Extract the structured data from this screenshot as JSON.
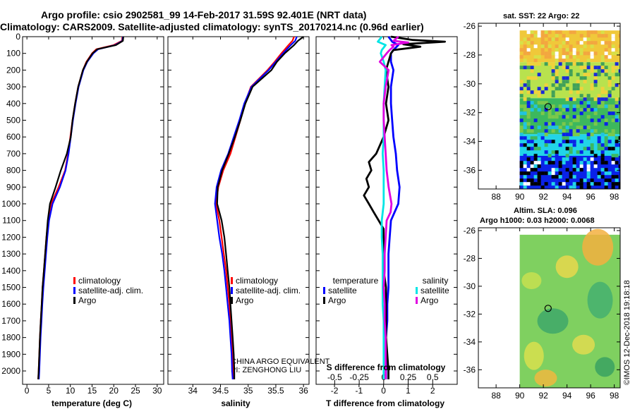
{
  "header": {
    "line1": "Argo profile: csio 2902581_99 14-Feb-2017 31.59S 92.401E (NRT data)",
    "line2": "Climatology: CARS2009. Satellite-adjusted climatology: synTS_20170214.nc (0.96d earlier)"
  },
  "map_titles": {
    "sst": "sat. SST: 22 Argo: 22",
    "sla": "Altim. SLA: 0.096",
    "h": "Argo h1000: 0.03 h2000: 0.0068"
  },
  "attribution": {
    "line1": "CHINA ARGO EQUIVALENT",
    "line2": "PI: ZENGHONG LIU"
  },
  "credit": "©IMOS 12-Dec-2018 19:18:18",
  "colors": {
    "climatology": "#ff0000",
    "satellite_adj": "#0000ff",
    "argo": "#000000",
    "t_satellite": "#0000ff",
    "s_satellite": "#00e5e5",
    "s_argo": "#e000e0"
  },
  "chart_data": [
    {
      "id": "temperature",
      "type": "line",
      "xlabel": "temperature (deg C)",
      "xlim": [
        -1,
        31.5
      ],
      "xticks": [
        0,
        5,
        10,
        15,
        20,
        25,
        30
      ],
      "ylim": [
        2080,
        0
      ],
      "yticks": [
        0,
        100,
        200,
        300,
        400,
        500,
        600,
        700,
        800,
        900,
        1000,
        1100,
        1200,
        1300,
        1400,
        1500,
        1600,
        1700,
        1800,
        1900,
        2000
      ],
      "legend": [
        "climatology",
        "satellite-adj. clim.",
        "Argo"
      ],
      "series": [
        {
          "name": "climatology",
          "depth": [
            0,
            25,
            50,
            75,
            100,
            150,
            200,
            300,
            400,
            500,
            600,
            700,
            800,
            900,
            1000,
            1100,
            1200,
            1300,
            1400,
            1500,
            1600,
            1700,
            1800,
            1900,
            2000,
            2050
          ],
          "values": [
            22.0,
            21.9,
            20.0,
            16.0,
            15.0,
            13.7,
            12.9,
            11.8,
            11.1,
            10.5,
            10.0,
            9.5,
            8.8,
            7.3,
            5.6,
            4.9,
            4.5,
            4.2,
            3.9,
            3.6,
            3.4,
            3.2,
            3.0,
            2.85,
            2.7,
            2.6
          ]
        },
        {
          "name": "satellite-adj. clim.",
          "depth": [
            0,
            25,
            50,
            75,
            100,
            150,
            200,
            300,
            400,
            500,
            600,
            700,
            800,
            900,
            1000,
            1100,
            1200,
            1300,
            1400,
            1500,
            1600,
            1700,
            1800,
            1900,
            2000,
            2050
          ],
          "values": [
            22.1,
            22.0,
            20.3,
            16.4,
            15.3,
            13.9,
            13.0,
            11.9,
            11.2,
            10.6,
            10.1,
            9.6,
            8.9,
            7.6,
            5.9,
            5.1,
            4.7,
            4.4,
            4.1,
            3.8,
            3.55,
            3.35,
            3.15,
            3.0,
            2.85,
            2.75
          ]
        },
        {
          "name": "Argo",
          "depth": [
            0,
            25,
            50,
            75,
            100,
            150,
            200,
            300,
            400,
            500,
            600,
            700,
            800,
            900,
            1000,
            1100,
            1200,
            1300,
            1400,
            1500,
            1600,
            1700,
            1800,
            1900,
            2000,
            2050
          ],
          "values": [
            22.2,
            22.1,
            20.5,
            16.2,
            15.1,
            13.8,
            12.9,
            11.8,
            11.1,
            10.5,
            10.1,
            9.2,
            7.8,
            6.6,
            5.3,
            4.8,
            4.5,
            4.2,
            3.9,
            3.6,
            3.4,
            3.2,
            3.0,
            2.85,
            2.7,
            2.6
          ]
        }
      ]
    },
    {
      "id": "salinity",
      "type": "line",
      "xlabel": "salinity",
      "xlim": [
        33.55,
        36.1
      ],
      "xticks": [
        34,
        34.5,
        35,
        35.5,
        36
      ],
      "ylim": [
        2080,
        0
      ],
      "legend": [
        "climatology",
        "satellite-adj. clim.",
        "Argo"
      ],
      "series": [
        {
          "name": "climatology",
          "depth": [
            0,
            25,
            50,
            100,
            150,
            200,
            300,
            400,
            500,
            600,
            700,
            800,
            900,
            1000,
            1100,
            1200,
            1300,
            1400,
            1500,
            1600,
            1700,
            1800,
            1900,
            2000,
            2050
          ],
          "values": [
            35.83,
            35.8,
            35.73,
            35.6,
            35.48,
            35.35,
            35.05,
            34.94,
            34.86,
            34.77,
            34.68,
            34.55,
            34.46,
            34.42,
            34.48,
            34.52,
            34.56,
            34.6,
            34.63,
            34.66,
            34.68,
            34.7,
            34.72,
            34.73,
            34.74
          ]
        },
        {
          "name": "satellite-adj. clim.",
          "depth": [
            0,
            25,
            50,
            100,
            150,
            200,
            300,
            400,
            500,
            600,
            700,
            800,
            900,
            1000,
            1100,
            1200,
            1300,
            1400,
            1500,
            1600,
            1700,
            1800,
            1900,
            2000,
            2050
          ],
          "values": [
            35.88,
            35.85,
            35.77,
            35.63,
            35.5,
            35.37,
            35.06,
            34.93,
            34.84,
            34.74,
            34.64,
            34.51,
            34.43,
            34.4,
            34.44,
            34.48,
            34.53,
            34.57,
            34.6,
            34.63,
            34.66,
            34.68,
            34.7,
            34.71,
            34.72
          ]
        },
        {
          "name": "Argo",
          "depth": [
            0,
            25,
            50,
            100,
            150,
            200,
            300,
            400,
            500,
            600,
            700,
            800,
            900,
            1000,
            1100,
            1200,
            1300,
            1400,
            1500,
            1600,
            1700,
            1800,
            1900,
            2000,
            2050
          ],
          "values": [
            36.0,
            35.9,
            35.83,
            35.66,
            35.52,
            35.42,
            35.08,
            34.95,
            34.86,
            34.76,
            34.65,
            34.53,
            34.45,
            34.44,
            34.52,
            34.57,
            34.6,
            34.63,
            34.66,
            34.68,
            34.7,
            34.72,
            34.74,
            34.75,
            34.75
          ]
        }
      ]
    },
    {
      "id": "difference",
      "type": "line",
      "xlabel": "T difference from climatology",
      "xlabel_top": "S difference from climatology",
      "xlim": [
        -2.75,
        3.0
      ],
      "xticks": [
        -2,
        -1,
        0,
        1,
        2
      ],
      "xlim_s": [
        -0.69,
        0.75
      ],
      "xticks_s": [
        -0.5,
        -0.25,
        0,
        0.25,
        0.5
      ],
      "xticklabels_s": [
        "-0.5",
        "-0.25",
        "0",
        "0.25",
        "0.5"
      ],
      "ylim": [
        2080,
        0
      ],
      "legend_temperature_title": "temperature",
      "legend_salinity_title": "salinity",
      "legend": [
        "satellite",
        "Argo",
        "satellite",
        "Argo"
      ],
      "series": [
        {
          "name": "T satellite",
          "axis": "T",
          "depth": [
            0,
            30,
            50,
            80,
            100,
            150,
            200,
            300,
            400,
            500,
            600,
            700,
            800,
            900,
            1000,
            1100,
            1200,
            1300,
            1400,
            1500,
            1600,
            1700,
            1800,
            1900,
            2000,
            2050
          ],
          "values": [
            0.2,
            0.35,
            0.6,
            0.4,
            0.3,
            0.3,
            0.4,
            0.3,
            0.3,
            0.35,
            0.4,
            0.5,
            0.55,
            0.65,
            0.6,
            0.3,
            0.25,
            0.2,
            0.2,
            0.2,
            0.15,
            0.15,
            0.1,
            0.1,
            0.1,
            0.1
          ]
        },
        {
          "name": "T Argo",
          "axis": "T",
          "depth": [
            0,
            20,
            30,
            45,
            60,
            80,
            100,
            150,
            200,
            300,
            400,
            500,
            600,
            700,
            750,
            800,
            850,
            900,
            950,
            1000,
            1050,
            1100,
            1150,
            1200,
            1300,
            1400,
            1500,
            1600,
            1700,
            1800,
            1900,
            2000,
            2050
          ],
          "values": [
            0.3,
            1.2,
            2.5,
            0.8,
            1.5,
            0.4,
            0.3,
            0.2,
            0.1,
            0.2,
            0.1,
            0.2,
            0.0,
            -0.3,
            -0.6,
            -0.5,
            -0.7,
            -0.6,
            -0.8,
            -0.6,
            -0.4,
            -0.2,
            0.0,
            0.0,
            0.0,
            0.0,
            0.1,
            0.1,
            0.1,
            0.1,
            0.15,
            0.2,
            0.2
          ]
        },
        {
          "name": "S satellite",
          "axis": "S",
          "depth": [
            0,
            30,
            50,
            80,
            100,
            150,
            200,
            300,
            400,
            500,
            600,
            700,
            800,
            900,
            1000,
            1100,
            1200,
            1300,
            1400,
            1500,
            1600,
            1700,
            1800,
            1900,
            2000,
            2050
          ],
          "values": [
            -0.02,
            -0.06,
            0.02,
            -0.02,
            -0.03,
            0.0,
            0.02,
            0.01,
            0.0,
            0.0,
            0.0,
            -0.01,
            0.0,
            0.0,
            0.0,
            -0.02,
            -0.02,
            -0.01,
            -0.01,
            -0.01,
            -0.01,
            0.0,
            0.0,
            0.0,
            0.0,
            0.0
          ]
        },
        {
          "name": "S Argo",
          "axis": "S",
          "depth": [
            0,
            25,
            35,
            50,
            60,
            80,
            100,
            150,
            200,
            300,
            400,
            500,
            600,
            700,
            800,
            900,
            1000,
            1050,
            1100,
            1200,
            1300,
            1400,
            1500,
            1600,
            1700,
            1800,
            1900,
            2000,
            2050
          ],
          "values": [
            0.15,
            0.1,
            0.25,
            0.08,
            0.1,
            0.06,
            0.03,
            -0.04,
            0.05,
            0.02,
            0.0,
            0.0,
            0.01,
            0.02,
            0.03,
            0.05,
            0.08,
            0.07,
            0.03,
            0.02,
            0.01,
            0.01,
            0.0,
            0.01,
            0.01,
            0.02,
            0.02,
            0.02,
            0.02
          ]
        }
      ]
    },
    {
      "id": "sst_map",
      "type": "heatmap",
      "xlim": [
        86.5,
        98.5
      ],
      "xticks": [
        88,
        90,
        92,
        94,
        96,
        98
      ],
      "ylim": [
        -37.3,
        -25.8
      ],
      "yticks": [
        -26,
        -28,
        -30,
        -32,
        -34,
        -36
      ],
      "data_extent": {
        "lon": [
          90,
          98.5
        ],
        "lat": [
          -37.3,
          -26.3
        ]
      },
      "argo_position": {
        "lon": 92.4,
        "lat": -31.59
      },
      "color_bands": [
        {
          "from_lat": -26.3,
          "to_lat": -28.5,
          "color": "#f0c83a"
        },
        {
          "from_lat": -28.5,
          "to_lat": -31.0,
          "color": "#b8e24e"
        },
        {
          "from_lat": -31.0,
          "to_lat": -33.5,
          "color": "#3cb85e"
        },
        {
          "from_lat": -33.5,
          "to_lat": -35.0,
          "color": "#22d4e8"
        },
        {
          "from_lat": -35.0,
          "to_lat": -37.3,
          "color": "#0a22e8"
        }
      ]
    },
    {
      "id": "sla_map",
      "type": "heatmap",
      "xlim": [
        86.5,
        98.5
      ],
      "xticks": [
        88,
        90,
        92,
        94,
        96,
        98
      ],
      "ylim": [
        -37.3,
        -25.8
      ],
      "yticks": [
        -26,
        -28,
        -30,
        -32,
        -34,
        -36
      ],
      "data_extent": {
        "lon": [
          90,
          98.5
        ],
        "lat": [
          -37.3,
          -26.3
        ]
      },
      "argo_position": {
        "lon": 92.4,
        "lat": -31.59
      },
      "color_bands": [
        {
          "from_lat": -26.3,
          "to_lat": -37.3,
          "color": "#7fd060"
        }
      ]
    }
  ]
}
